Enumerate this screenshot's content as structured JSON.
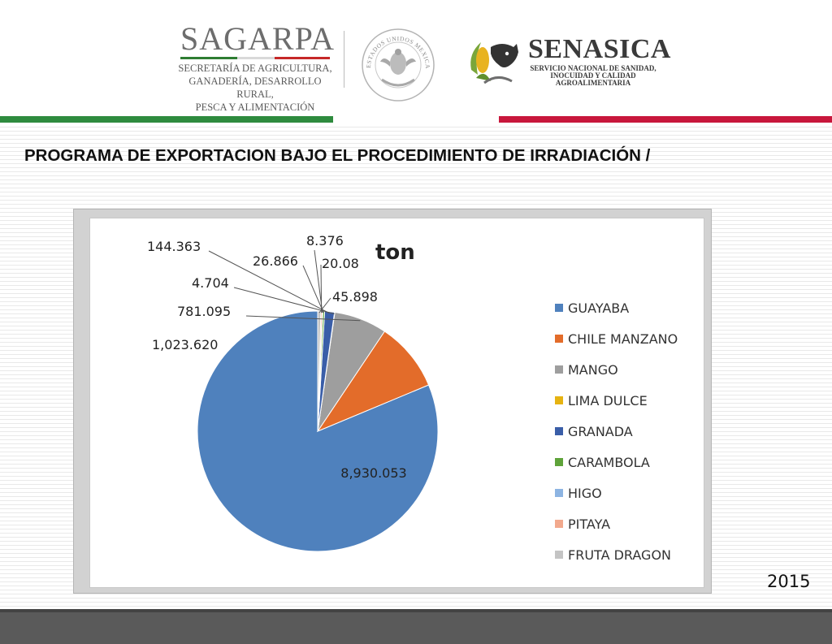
{
  "header": {
    "sagarpa_title": "SAGARPA",
    "sagarpa_lines": [
      "SECRETARÍA DE AGRICULTURA,",
      "GANADERÍA, DESARROLLO RURAL,",
      "PESCA Y ALIMENTACIÓN"
    ],
    "seal_text": "ESTADOS UNIDOS MEXICANOS",
    "senasica_title": "SENASICA",
    "senasica_lines": [
      "SERVICIO NACIONAL DE SANIDAD,",
      "INOCUIDAD Y CALIDAD",
      "AGROALIMENTARIA"
    ],
    "colors": {
      "green": "#2e8b3e",
      "red": "#c8173c"
    }
  },
  "page": {
    "title": "PROGRAMA DE EXPORTACION BAJO EL PROCEDIMIENTO DE IRRADIACIÓN /",
    "year": "2015"
  },
  "chart_data": {
    "type": "pie",
    "unit_label": "ton",
    "legend_position": "right",
    "slices": [
      {
        "name": "GUAYABA",
        "value": 8930.053,
        "label": "8,930.053",
        "color": "#4f81bd"
      },
      {
        "name": "CHILE MANZANO",
        "value": 1023.62,
        "label": "1,023.620",
        "color": "#e36c2a"
      },
      {
        "name": "MANGO",
        "value": 781.095,
        "label": "781.095",
        "color": "#9e9e9e"
      },
      {
        "name": "LIMA DULCE",
        "value": 4.704,
        "label": "4.704",
        "color": "#e6b311"
      },
      {
        "name": "GRANADA",
        "value": 144.363,
        "label": "144.363",
        "color": "#3a5ea8"
      },
      {
        "name": "CARAMBOLA",
        "value": 26.866,
        "label": "26.866",
        "color": "#5fa33a"
      },
      {
        "name": "HIGO",
        "value": 8.376,
        "label": "8.376",
        "color": "#8db4e2"
      },
      {
        "name": "PITAYA",
        "value": 20.08,
        "label": "20.08",
        "color": "#f2a98d"
      },
      {
        "name": "FRUTA DRAGON",
        "value": 45.898,
        "label": "45.898",
        "color": "#c4c4c4"
      }
    ]
  }
}
